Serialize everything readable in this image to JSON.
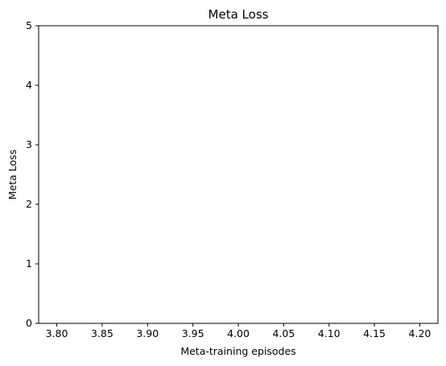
{
  "chart_data": {
    "type": "line",
    "title": "Meta Loss",
    "xlabel": "Meta-training episodes",
    "ylabel": "Meta Loss",
    "xlim": [
      3.78,
      4.22
    ],
    "ylim": [
      0,
      5
    ],
    "xticks": [
      "3.80",
      "3.85",
      "3.90",
      "3.95",
      "4.00",
      "4.05",
      "4.10",
      "4.15",
      "4.20"
    ],
    "xtick_values": [
      3.8,
      3.85,
      3.9,
      3.95,
      4.0,
      4.05,
      4.1,
      4.15,
      4.2
    ],
    "yticks": [
      "0",
      "1",
      "2",
      "3",
      "4",
      "5"
    ],
    "ytick_values": [
      0,
      1,
      2,
      3,
      4,
      5
    ],
    "series": [
      {
        "name": "Meta Loss",
        "x": [],
        "y": []
      }
    ],
    "grid": false,
    "colors": {
      "axes": "#000000",
      "background": "#ffffff",
      "series": "#1f77b4"
    }
  }
}
